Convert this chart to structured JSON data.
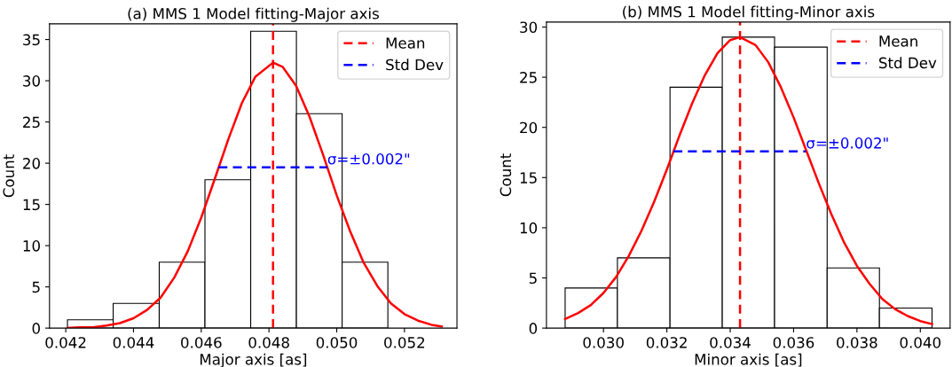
{
  "chart_data": [
    {
      "type": "histogram",
      "title": "(a) MMS 1 Model fitting-Major axis",
      "xlabel": "Major axis [as]",
      "ylabel": "Count",
      "color": "#ffffff",
      "bins": [
        0.04205,
        0.0434,
        0.04476,
        0.04611,
        0.04746,
        0.04881,
        0.05016,
        0.05151
      ],
      "values": [
        1,
        3,
        8,
        18,
        36,
        26,
        8
      ],
      "series": [
        {
          "type": "line",
          "color": "#ff0000",
          "x": [
            0.04205,
            0.0424,
            0.0428,
            0.0432,
            0.0436,
            0.044,
            0.0444,
            0.0448,
            0.0452,
            0.0456,
            0.046,
            0.0464,
            0.0468,
            0.0472,
            0.0476,
            0.04812,
            0.0484,
            0.0488,
            0.0492,
            0.0496,
            0.05,
            0.0504,
            0.0508,
            0.0512,
            0.0516,
            0.052,
            0.0524,
            0.0528,
            0.0531
          ],
          "values": [
            0,
            0.1,
            0.1,
            0.3,
            0.6,
            1.2,
            2.2,
            3.7,
            6.1,
            9.3,
            13.4,
            18.1,
            22.9,
            27.3,
            30.5,
            32.2,
            31.7,
            29.4,
            25.6,
            21.0,
            16.1,
            11.7,
            7.9,
            5.1,
            3.0,
            1.7,
            0.9,
            0.4,
            0.2
          ]
        },
        {
          "type": "line",
          "name": "Mean",
          "color": "#ff0000",
          "line_style": "dashed",
          "x": [
            0.04812,
            0.04812
          ],
          "values": [
            0,
            36.9
          ]
        },
        {
          "type": "line",
          "name": "Std Dev",
          "color": "#0000ff",
          "line_style": "dashed",
          "x": [
            0.04651,
            0.04972
          ],
          "values": [
            19.5,
            19.5
          ]
        }
      ],
      "annotations": [
        {
          "text": "σ=±0.002\"",
          "x": 0.04972,
          "y": 19.5
        }
      ],
      "xlim": [
        0.04152,
        0.05355
      ],
      "ylim": [
        0,
        36.9
      ],
      "xticks": [
        {
          "value": 0.042,
          "label": "0.042"
        },
        {
          "value": 0.044,
          "label": "0.044"
        },
        {
          "value": 0.046,
          "label": "0.046"
        },
        {
          "value": 0.048,
          "label": "0.048"
        },
        {
          "value": 0.05,
          "label": "0.050"
        },
        {
          "value": 0.052,
          "label": "0.052"
        }
      ],
      "yticks": [
        0,
        5,
        10,
        15,
        20,
        25,
        30,
        35
      ],
      "legend": "top right",
      "grid": false
    },
    {
      "type": "histogram",
      "title": "(b) MMS 1 Model fitting-Minor axis",
      "xlabel": "Minor axis [as]",
      "ylabel": "Count",
      "color": "#ffffff",
      "bins": [
        0.02879,
        0.03044,
        0.0321,
        0.03375,
        0.0354,
        0.03706,
        0.03871,
        0.04037
      ],
      "values": [
        4,
        7,
        24,
        29,
        28,
        6,
        2
      ],
      "series": [
        {
          "type": "line",
          "color": "#ff0000",
          "x": [
            0.02879,
            0.0292,
            0.0296,
            0.03,
            0.0304,
            0.0308,
            0.0312,
            0.0316,
            0.032,
            0.0324,
            0.0328,
            0.0332,
            0.0336,
            0.034,
            0.03431,
            0.0348,
            0.0352,
            0.0356,
            0.036,
            0.0364,
            0.0368,
            0.0372,
            0.0376,
            0.038,
            0.0384,
            0.0388,
            0.0392,
            0.0396,
            0.04,
            0.04037
          ],
          "values": [
            0.9,
            1.5,
            2.3,
            3.5,
            5.1,
            7.2,
            9.7,
            12.6,
            15.8,
            19.2,
            22.4,
            25.2,
            27.4,
            28.7,
            29,
            28.2,
            26.5,
            24.0,
            21.0,
            17.7,
            14.4,
            11.3,
            8.5,
            6.2,
            4.4,
            2.9,
            1.9,
            1.2,
            0.7,
            0.4
          ]
        },
        {
          "type": "line",
          "name": "Mean",
          "color": "#ff0000",
          "line_style": "dashed",
          "x": [
            0.03431,
            0.03431
          ],
          "values": [
            0,
            30.5
          ]
        },
        {
          "type": "line",
          "name": "Std Dev",
          "color": "#0000ff",
          "line_style": "dashed",
          "x": [
            0.03221,
            0.03639
          ],
          "values": [
            17.6,
            17.6
          ]
        }
      ],
      "annotations": [
        {
          "text": "σ=±0.002\"",
          "x": 0.03639,
          "y": 17.6
        }
      ],
      "xlim": [
        0.0282,
        0.04094
      ],
      "ylim": [
        0,
        30.5
      ],
      "xticks": [
        {
          "value": 0.03,
          "label": "0.030"
        },
        {
          "value": 0.032,
          "label": "0.032"
        },
        {
          "value": 0.034,
          "label": "0.034"
        },
        {
          "value": 0.036,
          "label": "0.036"
        },
        {
          "value": 0.038,
          "label": "0.038"
        },
        {
          "value": 0.04,
          "label": "0.040"
        }
      ],
      "yticks": [
        0,
        5,
        10,
        15,
        20,
        25,
        30
      ],
      "legend": "top right",
      "grid": false
    }
  ]
}
